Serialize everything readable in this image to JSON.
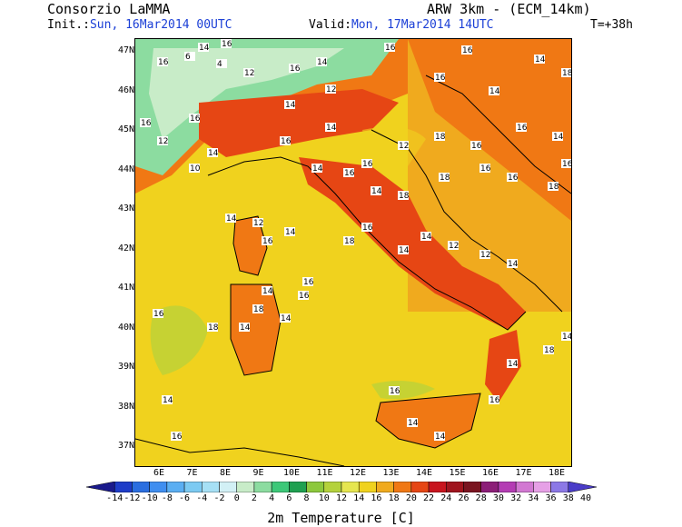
{
  "header": {
    "org": "Consorzio LaMMA",
    "model": "ARW 3km - (ECM_14km)",
    "init_label": "Init.:",
    "init_value": "Sun, 16Mar2014 00UTC",
    "valid_label": "Valid:",
    "valid_value": "Mon, 17Mar2014 14UTC",
    "lead": "T=+38h"
  },
  "axes": {
    "lat_labels": [
      "47N",
      "46N",
      "45N",
      "44N",
      "43N",
      "42N",
      "41N",
      "40N",
      "39N",
      "38N",
      "37N"
    ],
    "lon_labels": [
      "6E",
      "7E",
      "8E",
      "9E",
      "10E",
      "11E",
      "12E",
      "13E",
      "14E",
      "15E",
      "16E",
      "17E",
      "18E"
    ]
  },
  "colorbar": {
    "title": "2m Temperature [C]",
    "labels": [
      "-14",
      "-12",
      "-10",
      "-8",
      "-6",
      "-4",
      "-2",
      "0",
      "2",
      "4",
      "6",
      "8",
      "10",
      "12",
      "14",
      "16",
      "18",
      "20",
      "22",
      "24",
      "26",
      "28",
      "30",
      "32",
      "34",
      "36",
      "38",
      "40"
    ],
    "colors": [
      "#1a1a8c",
      "#1e3cc8",
      "#2a6ee0",
      "#3f8ef0",
      "#5aaef2",
      "#7ccaf2",
      "#a6e0f5",
      "#d2f0f5",
      "#c8ecc8",
      "#8cdca0",
      "#3cc878",
      "#1ea050",
      "#8cc83c",
      "#b4d23c",
      "#e6e650",
      "#f0d21e",
      "#f0aa1e",
      "#f07814",
      "#e64614",
      "#c8141e",
      "#a0141e",
      "#7a1420",
      "#8c1e78",
      "#b43cb4",
      "#d278d2",
      "#e6a0e6",
      "#8c78e6",
      "#4a3cc8"
    ]
  },
  "map_labels": [
    {
      "t": "16"
    },
    {
      "t": "14"
    },
    {
      "t": "16"
    },
    {
      "t": "6"
    },
    {
      "t": "4"
    },
    {
      "t": "12"
    },
    {
      "t": "16"
    },
    {
      "t": "14"
    },
    {
      "t": "16"
    },
    {
      "t": "16"
    },
    {
      "t": "14"
    },
    {
      "t": "12"
    },
    {
      "t": "16"
    },
    {
      "t": "14"
    },
    {
      "t": "18"
    },
    {
      "t": "16"
    },
    {
      "t": "16"
    },
    {
      "t": "14"
    },
    {
      "t": "10"
    },
    {
      "t": "14"
    },
    {
      "t": "12"
    },
    {
      "t": "16"
    },
    {
      "t": "14"
    },
    {
      "t": "16"
    },
    {
      "t": "12"
    },
    {
      "t": "18"
    },
    {
      "t": "16"
    },
    {
      "t": "16"
    },
    {
      "t": "14"
    },
    {
      "t": "14"
    },
    {
      "t": "16"
    },
    {
      "t": "14"
    },
    {
      "t": "18"
    },
    {
      "t": "18"
    },
    {
      "t": "16"
    },
    {
      "t": "16"
    },
    {
      "t": "18"
    },
    {
      "t": "16"
    },
    {
      "t": "14"
    },
    {
      "t": "12"
    },
    {
      "t": "16"
    },
    {
      "t": "14"
    },
    {
      "t": "18"
    },
    {
      "t": "16"
    },
    {
      "t": "14"
    },
    {
      "t": "14"
    },
    {
      "t": "12"
    },
    {
      "t": "12"
    },
    {
      "t": "14"
    },
    {
      "t": "16"
    },
    {
      "t": "14"
    },
    {
      "t": "18"
    },
    {
      "t": "14"
    },
    {
      "t": "16"
    },
    {
      "t": "14"
    },
    {
      "t": "18"
    },
    {
      "t": "16"
    },
    {
      "t": "14"
    },
    {
      "t": "16"
    },
    {
      "t": "16"
    },
    {
      "t": "14"
    },
    {
      "t": "14"
    },
    {
      "t": "16"
    },
    {
      "t": "14"
    },
    {
      "t": "18"
    },
    {
      "t": "14"
    }
  ]
}
